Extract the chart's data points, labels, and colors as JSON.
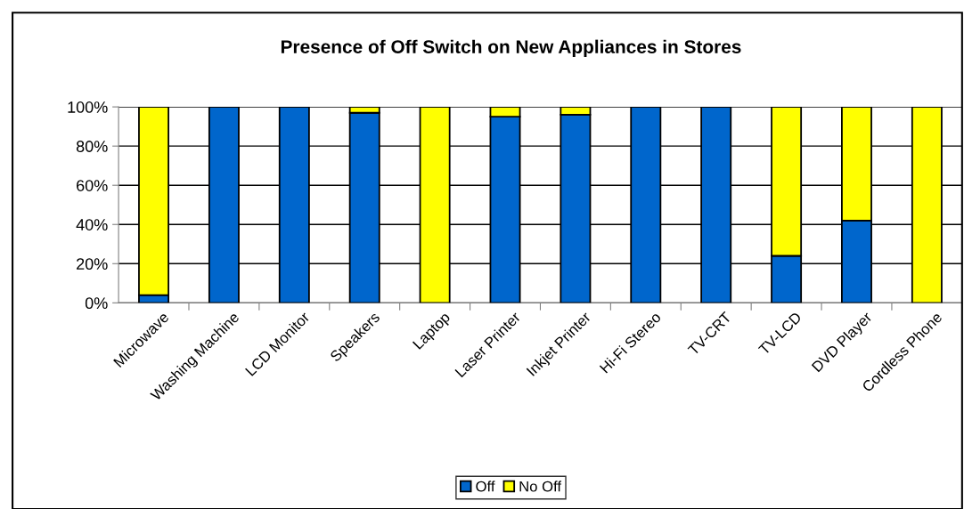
{
  "chart_data": {
    "type": "bar",
    "title": "Presence of Off Switch on New Appliances in Stores",
    "categories": [
      "Microwave",
      "Washing Machine",
      "LCD Monitor",
      "Speakers",
      "Laptop",
      "Laser Printer",
      "Inkjet Printer",
      "Hi-Fi Stereo",
      "TV-CRT",
      "TV-LCD",
      "DVD Player",
      "Cordless Phone"
    ],
    "series": [
      {
        "name": "Off",
        "color": "#0066cc",
        "values": [
          4,
          100,
          100,
          97,
          0,
          95,
          96,
          100,
          100,
          24,
          42,
          0
        ]
      },
      {
        "name": "No Off",
        "color": "#ffff00",
        "values": [
          96,
          0,
          0,
          3,
          100,
          5,
          4,
          0,
          0,
          76,
          58,
          100
        ]
      }
    ],
    "stacked": true,
    "ylim": [
      0,
      100
    ],
    "yticks": [
      {
        "value": 0,
        "label": "0%"
      },
      {
        "value": 20,
        "label": "20%"
      },
      {
        "value": 40,
        "label": "40%"
      },
      {
        "value": 60,
        "label": "60%"
      },
      {
        "value": 80,
        "label": "80%"
      },
      {
        "value": 100,
        "label": "100%"
      }
    ],
    "grid": "y",
    "legend": "bottom"
  }
}
